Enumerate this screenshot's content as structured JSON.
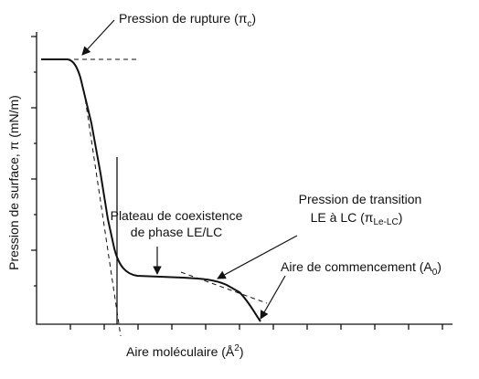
{
  "labels": {
    "rupture": {
      "text": "Pression de rupture (π",
      "sub": "c",
      "close": ")"
    },
    "plateau": {
      "line1": "Plateau de coexistence",
      "line2": "de phase LE/LC"
    },
    "transition": {
      "line1": "Pression de transition",
      "line2": "LE à LC (π",
      "sub": "Le-LC",
      "close": ")"
    },
    "onset": {
      "text": "Aire de commencement (A",
      "sub": "0",
      "close": ")"
    }
  },
  "axes": {
    "y_title": "Pression de surface, π (mN/m)",
    "x_title": "Aire moléculaire (Å",
    "x_sup": "2",
    "x_close": ")"
  }
}
